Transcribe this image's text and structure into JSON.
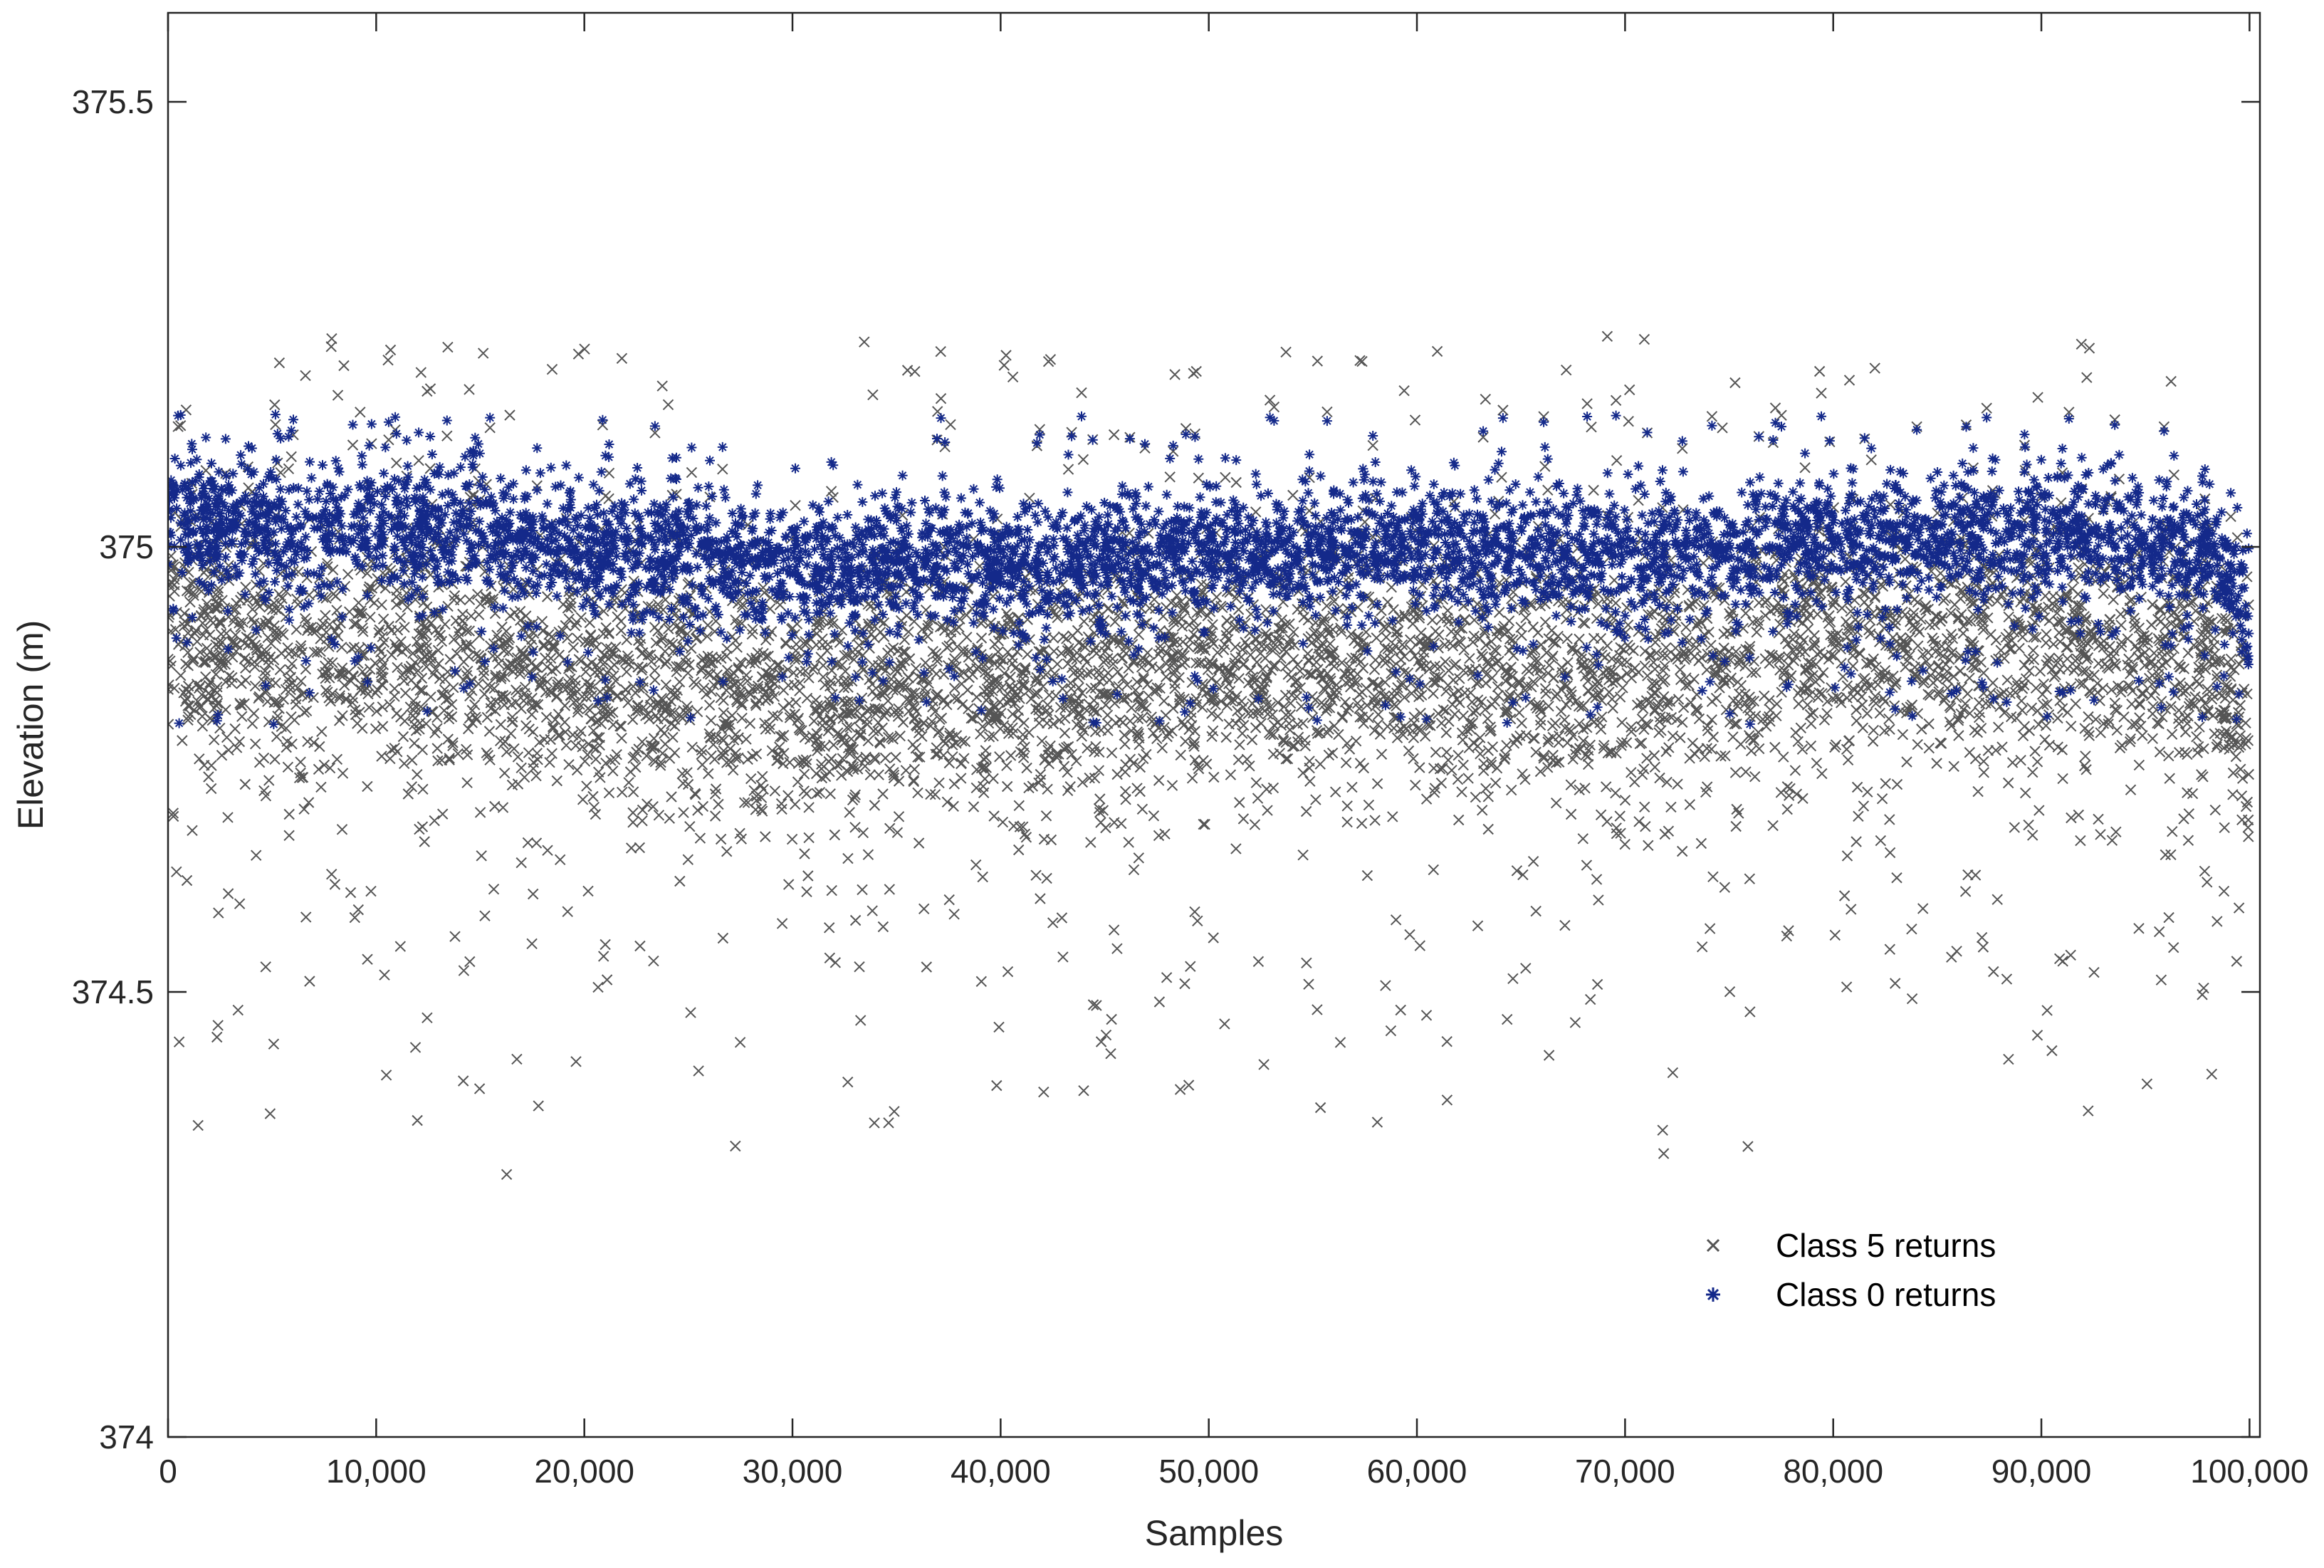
{
  "chart_data": {
    "type": "scatter",
    "title": "",
    "xlabel": "Samples",
    "ylabel": "Elevation (m)",
    "xlim": [
      0,
      100500
    ],
    "ylim": [
      374,
      375.6
    ],
    "x_ticks": [
      0,
      10000,
      20000,
      30000,
      40000,
      50000,
      60000,
      70000,
      80000,
      90000,
      100000
    ],
    "x_tick_labels": [
      "0",
      "10,000",
      "20,000",
      "30,000",
      "40,000",
      "50,000",
      "60,000",
      "70,000",
      "80,000",
      "90,000",
      "100,000"
    ],
    "y_ticks": [
      374,
      374.5,
      375,
      375.5
    ],
    "y_tick_labels": [
      "374",
      "374.5",
      "375",
      "375.5"
    ],
    "grid": false,
    "legend_position": "bottom-right",
    "series": [
      {
        "name": "Class 5 returns",
        "marker": "x",
        "color": "#555555",
        "band_center": [
          [
            0,
            374.9
          ],
          [
            13000,
            374.88
          ],
          [
            20000,
            374.85
          ],
          [
            30000,
            374.83
          ],
          [
            40000,
            374.84
          ],
          [
            50000,
            374.86
          ],
          [
            60000,
            374.86
          ],
          [
            70000,
            374.85
          ],
          [
            80000,
            374.88
          ],
          [
            90000,
            374.9
          ],
          [
            98000,
            374.88
          ],
          [
            100000,
            374.8
          ]
        ],
        "band_halfwidth": 0.12,
        "y_range_observed": [
          374.29,
          375.24
        ]
      },
      {
        "name": "Class 0 returns",
        "marker": "*",
        "color": "#14298a",
        "band_center": [
          [
            0,
            375.03
          ],
          [
            13000,
            375.02
          ],
          [
            20000,
            375.0
          ],
          [
            30000,
            374.98
          ],
          [
            40000,
            374.98
          ],
          [
            50000,
            374.99
          ],
          [
            60000,
            375.0
          ],
          [
            70000,
            374.99
          ],
          [
            80000,
            375.0
          ],
          [
            90000,
            375.02
          ],
          [
            98000,
            375.0
          ],
          [
            100000,
            374.93
          ]
        ],
        "band_halfwidth": 0.06,
        "y_range_observed": [
          374.8,
          375.15
        ]
      }
    ]
  }
}
